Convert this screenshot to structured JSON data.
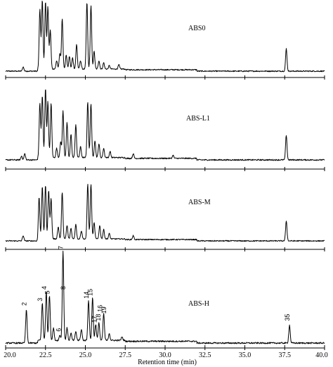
{
  "chart_data": {
    "type": "line",
    "xlabel": "Retention time (min)",
    "xlim": [
      20.0,
      40.0
    ],
    "xticks": [
      20.0,
      22.5,
      25.0,
      27.5,
      30.0,
      32.5,
      35.0,
      37.5,
      40.0
    ],
    "xtick_labels": [
      "20.0",
      "22.5",
      "25.0",
      "27.5",
      "30.0",
      "32.5",
      "35.0",
      "37.5",
      "40.0"
    ],
    "ylim": [
      0,
      100
    ],
    "grid": false,
    "series": [
      {
        "name": "ABS0",
        "peaks": [
          [
            21.1,
            6
          ],
          [
            22.15,
            85
          ],
          [
            22.3,
            98
          ],
          [
            22.5,
            96
          ],
          [
            22.65,
            88
          ],
          [
            22.8,
            55
          ],
          [
            23.2,
            12
          ],
          [
            23.4,
            22
          ],
          [
            23.55,
            72
          ],
          [
            23.8,
            20
          ],
          [
            24.0,
            18
          ],
          [
            24.2,
            16
          ],
          [
            24.45,
            35
          ],
          [
            24.7,
            12
          ],
          [
            25.1,
            95
          ],
          [
            25.35,
            90
          ],
          [
            25.55,
            25
          ],
          [
            25.85,
            12
          ],
          [
            26.15,
            9
          ],
          [
            26.5,
            5
          ],
          [
            27.1,
            6
          ],
          [
            37.6,
            32
          ]
        ]
      },
      {
        "name": "ABS-L1",
        "peaks": [
          [
            21.0,
            5
          ],
          [
            21.2,
            8
          ],
          [
            22.15,
            70
          ],
          [
            22.3,
            80
          ],
          [
            22.5,
            90
          ],
          [
            22.65,
            72
          ],
          [
            22.85,
            70
          ],
          [
            23.2,
            12
          ],
          [
            23.45,
            20
          ],
          [
            23.6,
            60
          ],
          [
            23.85,
            45
          ],
          [
            24.1,
            30
          ],
          [
            24.4,
            42
          ],
          [
            24.7,
            14
          ],
          [
            25.15,
            72
          ],
          [
            25.35,
            70
          ],
          [
            25.6,
            22
          ],
          [
            25.85,
            18
          ],
          [
            26.15,
            12
          ],
          [
            26.55,
            8
          ],
          [
            28.0,
            6
          ],
          [
            30.5,
            4
          ],
          [
            37.6,
            32
          ]
        ]
      },
      {
        "name": "ABS-M",
        "peaks": [
          [
            21.1,
            8
          ],
          [
            22.1,
            62
          ],
          [
            22.3,
            78
          ],
          [
            22.5,
            80
          ],
          [
            22.7,
            72
          ],
          [
            22.85,
            60
          ],
          [
            23.3,
            18
          ],
          [
            23.55,
            70
          ],
          [
            23.85,
            20
          ],
          [
            24.1,
            16
          ],
          [
            24.4,
            22
          ],
          [
            24.75,
            12
          ],
          [
            25.15,
            82
          ],
          [
            25.35,
            82
          ],
          [
            25.55,
            24
          ],
          [
            25.9,
            20
          ],
          [
            26.15,
            14
          ],
          [
            26.5,
            8
          ],
          [
            28.0,
            6
          ],
          [
            37.6,
            30
          ]
        ]
      },
      {
        "name": "ABS-H",
        "peaks": [
          [
            21.3,
            37
          ],
          [
            22.3,
            42
          ],
          [
            22.55,
            55
          ],
          [
            22.75,
            50
          ],
          [
            23.0,
            14
          ],
          [
            23.4,
            6
          ],
          [
            23.6,
            100
          ],
          [
            23.85,
            14
          ],
          [
            24.1,
            8
          ],
          [
            24.4,
            10
          ],
          [
            24.75,
            12
          ],
          [
            25.2,
            45
          ],
          [
            25.45,
            48
          ],
          [
            25.65,
            18
          ],
          [
            25.85,
            20
          ],
          [
            26.15,
            30
          ],
          [
            26.5,
            8
          ],
          [
            27.3,
            4
          ],
          [
            37.8,
            20
          ]
        ]
      }
    ],
    "annotations": {
      "ABS-H": [
        {
          "text": "2",
          "x": 21.3,
          "y": 37
        },
        {
          "text": "3",
          "x": 22.3,
          "y": 42
        },
        {
          "text": "4",
          "x": 22.55,
          "y": 55
        },
        {
          "text": "5",
          "x": 22.75,
          "y": 50
        },
        {
          "text": "6",
          "x": 23.45,
          "y": 8
        },
        {
          "text": "7",
          "x": 23.6,
          "y": 100
        },
        {
          "text": "8",
          "x": 23.75,
          "y": 55
        },
        {
          "text": "14",
          "x": 25.2,
          "y": 45
        },
        {
          "text": "15",
          "x": 25.45,
          "y": 48
        },
        {
          "text": "16",
          "x": 26.05,
          "y": 30
        },
        {
          "text": "17",
          "x": 25.7,
          "y": 18
        },
        {
          "text": "18",
          "x": 25.95,
          "y": 20
        },
        {
          "text": "19",
          "x": 26.3,
          "y": 28
        },
        {
          "text": "35",
          "x": 37.8,
          "y": 20
        }
      ]
    }
  }
}
